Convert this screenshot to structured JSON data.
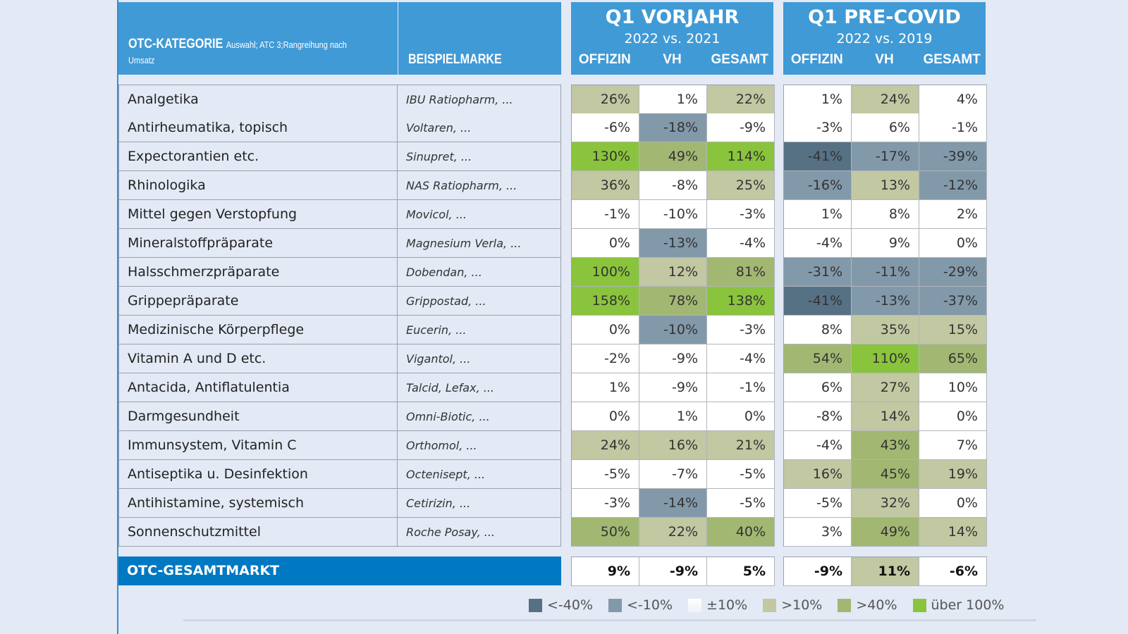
{
  "header": {
    "category": "OTC-KATEGORIE",
    "category_note": "Auswahl; ATC 3;Rangreihung nach Umsatz",
    "brand": "BEISPIELMARKE",
    "groups": [
      {
        "title": "Q1 VORJAHR",
        "subtitle": "2022 vs. 2021",
        "cols": [
          "OFFIZIN",
          "VH",
          "GESAMT"
        ]
      },
      {
        "title": "Q1 PRE-COVID",
        "subtitle": "2022 vs. 2019",
        "cols": [
          "OFFIZIN",
          "VH",
          "GESAMT"
        ]
      }
    ]
  },
  "colors": {
    "<-40%": "#577184",
    "<-10%": "#8299aa",
    "±10%": "#ffffff",
    ">10%": "#c1c8a2",
    ">40%": "#a2b872",
    "über 100%": "#8ac43c"
  },
  "chart_data": {
    "type": "table",
    "columns": [
      "OTC-KATEGORIE",
      "BEISPIELMARKE",
      "Q1 VORJAHR OFFIZIN",
      "Q1 VORJAHR VH",
      "Q1 VORJAHR GESAMT",
      "Q1 PRE-COVID OFFIZIN",
      "Q1 PRE-COVID VH",
      "Q1 PRE-COVID GESAMT"
    ],
    "rows": [
      {
        "category": "Analgetika",
        "brand": "IBU Ratiopharm, ...",
        "values": [
          "26%",
          "1%",
          "22%",
          "1%",
          "24%",
          "4%"
        ],
        "levels": [
          "l",
          "w",
          "l",
          "w",
          "l",
          "w"
        ]
      },
      {
        "category": "Antirheumatika, topisch",
        "brand": "Voltaren, ...",
        "values": [
          "-6%",
          "-18%",
          "-9%",
          "-3%",
          "6%",
          "-1%"
        ],
        "levels": [
          "w",
          "m",
          "w",
          "w",
          "w",
          "w"
        ]
      },
      {
        "category": "Expectorantien etc.",
        "brand": "Sinupret, ...",
        "values": [
          "130%",
          "49%",
          "114%",
          "-41%",
          "-17%",
          "-39%"
        ],
        "levels": [
          "b",
          "g",
          "b",
          "d",
          "m",
          "m"
        ]
      },
      {
        "category": "Rhinologika",
        "brand": "NAS Ratiopharm, ...",
        "values": [
          "36%",
          "-8%",
          "25%",
          "-16%",
          "13%",
          "-12%"
        ],
        "levels": [
          "l",
          "w",
          "l",
          "m",
          "l",
          "m"
        ]
      },
      {
        "category": "Mittel gegen Verstopfung",
        "brand": "Movicol, ...",
        "values": [
          "-1%",
          "-10%",
          "-3%",
          "1%",
          "8%",
          "2%"
        ],
        "levels": [
          "w",
          "w",
          "w",
          "w",
          "w",
          "w"
        ]
      },
      {
        "category": "Mineralstoffpräparate",
        "brand": "Magnesium Verla, ...",
        "values": [
          "0%",
          "-13%",
          "-4%",
          "-4%",
          "9%",
          "0%"
        ],
        "levels": [
          "w",
          "m",
          "w",
          "w",
          "w",
          "w"
        ]
      },
      {
        "category": "Halsschmerzpräparate",
        "brand": "Dobendan, ...",
        "values": [
          "100%",
          "12%",
          "81%",
          "-31%",
          "-11%",
          "-29%"
        ],
        "levels": [
          "b",
          "l",
          "g",
          "m",
          "m",
          "m"
        ]
      },
      {
        "category": "Grippepräparate",
        "brand": "Grippostad, ...",
        "values": [
          "158%",
          "78%",
          "138%",
          "-41%",
          "-13%",
          "-37%"
        ],
        "levels": [
          "b",
          "g",
          "b",
          "d",
          "m",
          "m"
        ]
      },
      {
        "category": "Medizinische Körperpflege",
        "brand": "Eucerin, ...",
        "values": [
          "0%",
          "-10%",
          "-3%",
          "8%",
          "35%",
          "15%"
        ],
        "levels": [
          "w",
          "m",
          "w",
          "w",
          "l",
          "l"
        ]
      },
      {
        "category": "Vitamin A und D etc.",
        "brand": "Vigantol, ...",
        "values": [
          "-2%",
          "-9%",
          "-4%",
          "54%",
          "110%",
          "65%"
        ],
        "levels": [
          "w",
          "w",
          "w",
          "g",
          "b",
          "g"
        ]
      },
      {
        "category": "Antacida, Antiflatulentia",
        "brand": "Talcid, Lefax, ...",
        "values": [
          "1%",
          "-9%",
          "-1%",
          "6%",
          "27%",
          "10%"
        ],
        "levels": [
          "w",
          "w",
          "w",
          "w",
          "l",
          "w"
        ]
      },
      {
        "category": "Darmgesundheit",
        "brand": "Omni-Biotic, ...",
        "values": [
          "0%",
          "1%",
          "0%",
          "-8%",
          "14%",
          "0%"
        ],
        "levels": [
          "w",
          "w",
          "w",
          "w",
          "l",
          "w"
        ]
      },
      {
        "category": "Immunsystem, Vitamin C",
        "brand": "Orthomol, ...",
        "values": [
          "24%",
          "16%",
          "21%",
          "-4%",
          "43%",
          "7%"
        ],
        "levels": [
          "l",
          "l",
          "l",
          "w",
          "g",
          "w"
        ]
      },
      {
        "category": "Antiseptika u. Desinfektion",
        "brand": "Octenisept, ...",
        "values": [
          "-5%",
          "-7%",
          "-5%",
          "16%",
          "45%",
          "19%"
        ],
        "levels": [
          "w",
          "w",
          "w",
          "l",
          "g",
          "l"
        ]
      },
      {
        "category": "Antihistamine, systemisch",
        "brand": "Cetirizin, ...",
        "values": [
          "-3%",
          "-14%",
          "-5%",
          "-5%",
          "32%",
          "0%"
        ],
        "levels": [
          "w",
          "m",
          "w",
          "w",
          "l",
          "w"
        ]
      },
      {
        "category": "Sonnenschutzmittel",
        "brand": "Roche Posay, ...",
        "values": [
          "50%",
          "22%",
          "40%",
          "3%",
          "49%",
          "14%"
        ],
        "levels": [
          "g",
          "l",
          "g",
          "w",
          "g",
          "l"
        ]
      }
    ],
    "total": {
      "category": "OTC-GESAMTMARKT",
      "values": [
        "9%",
        "-9%",
        "5%",
        "-9%",
        "11%",
        "-6%"
      ],
      "levels": [
        "w",
        "w",
        "w",
        "w",
        "l",
        "w"
      ]
    }
  },
  "legend": [
    {
      "label": "<-40%",
      "level": "d"
    },
    {
      "label": "<-10%",
      "level": "m"
    },
    {
      "label": "±10%",
      "level": "w"
    },
    {
      "label": ">10%",
      "level": "l"
    },
    {
      "label": ">40%",
      "level": "g"
    },
    {
      "label": "über 100%",
      "level": "b"
    }
  ]
}
